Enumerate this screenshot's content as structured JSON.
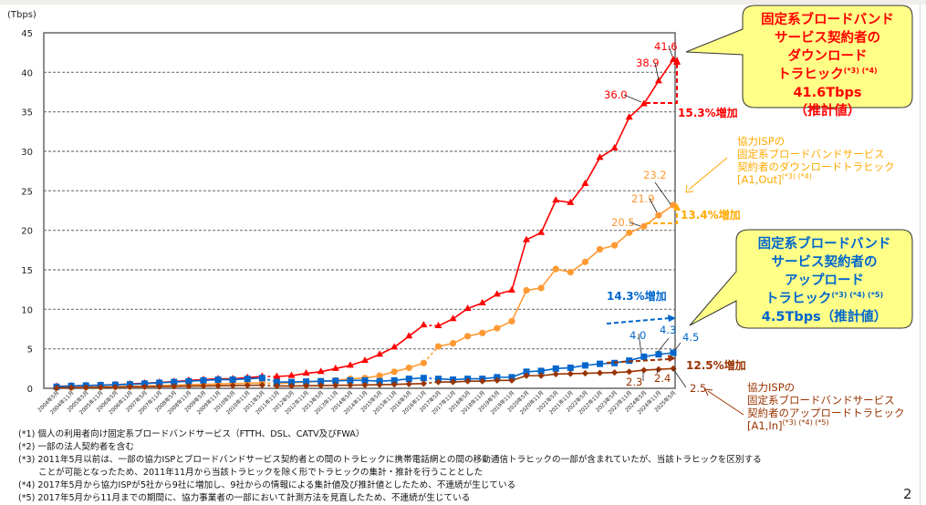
{
  "chart_data": {
    "type": "line",
    "unit_label": "(Tbps)",
    "ylim": [
      0,
      45
    ],
    "yticks": [
      0,
      5,
      10,
      15,
      20,
      25,
      30,
      35,
      40,
      45
    ],
    "grid": "horizontal-dashed",
    "categories": [
      "2004年5月",
      "2004年11月",
      "2005年5月",
      "2005年11月",
      "2006年5月",
      "2006年11月",
      "2007年5月",
      "2007年11月",
      "2008年5月",
      "2008年11月",
      "2009年5月",
      "2009年11月",
      "2010年5月",
      "2010年11月",
      "2011年5月",
      "2011年11月",
      "2012年5月",
      "2012年11月",
      "2013年5月",
      "2013年11月",
      "2014年5月",
      "2014年11月",
      "2015年5月",
      "2015年11月",
      "2016年5月",
      "2016年11月",
      "2017年5月",
      "2017年11月",
      "2018年5月",
      "2018年11月",
      "2019年5月",
      "2019年11月",
      "2020年5月",
      "2020年11月",
      "2021年5月",
      "2021年11月",
      "2022年5月",
      "2022年11月",
      "2023年5月",
      "2023年11月",
      "2024年5月",
      "2024年11月",
      "2025年5月"
    ],
    "series": [
      {
        "key": "download",
        "color": "#ff0000",
        "marker": "triangle",
        "values": [
          0.25,
          0.3,
          0.35,
          0.4,
          0.45,
          0.55,
          0.65,
          0.75,
          0.85,
          1.0,
          1.1,
          1.2,
          1.2,
          1.35,
          1.5,
          1.5,
          1.6,
          1.9,
          2.1,
          2.5,
          2.9,
          3.5,
          4.3,
          5.2,
          6.6,
          8.0,
          7.9,
          8.8,
          10.1,
          10.8,
          11.9,
          12.4,
          18.8,
          19.7,
          23.8,
          23.5,
          25.9,
          29.2,
          30.4,
          34.3,
          36.0,
          38.9,
          41.6
        ]
      },
      {
        "key": "isp_download",
        "color": "#ff9933",
        "marker": "circle",
        "values": [
          0.1,
          0.12,
          0.15,
          0.18,
          0.2,
          0.25,
          0.3,
          0.35,
          0.4,
          0.45,
          0.5,
          0.55,
          0.6,
          0.65,
          0.7,
          0.6,
          0.7,
          0.8,
          0.9,
          1.0,
          1.2,
          1.3,
          1.6,
          2.1,
          2.6,
          3.2,
          5.3,
          5.7,
          6.6,
          7.0,
          7.6,
          8.5,
          12.4,
          12.7,
          15.1,
          14.7,
          16.0,
          17.6,
          18.1,
          19.7,
          20.5,
          21.9,
          23.2
        ]
      },
      {
        "key": "upload",
        "color": "#0066cc",
        "marker": "square",
        "values": [
          0.2,
          0.3,
          0.35,
          0.4,
          0.45,
          0.5,
          0.6,
          0.7,
          0.8,
          0.9,
          1.0,
          1.1,
          1.1,
          1.2,
          1.3,
          0.8,
          0.8,
          0.85,
          0.9,
          0.95,
          1.0,
          1.0,
          0.9,
          1.0,
          1.2,
          1.3,
          1.2,
          1.1,
          1.2,
          1.2,
          1.4,
          1.4,
          2.1,
          2.2,
          2.5,
          2.6,
          2.9,
          3.1,
          3.2,
          3.5,
          4.0,
          4.3,
          4.5
        ]
      },
      {
        "key": "isp_upload",
        "color": "#993300",
        "marker": "diamond",
        "values": [
          0.05,
          0.08,
          0.1,
          0.12,
          0.15,
          0.18,
          0.2,
          0.22,
          0.25,
          0.28,
          0.3,
          0.32,
          0.35,
          0.38,
          0.4,
          0.3,
          0.3,
          0.32,
          0.35,
          0.38,
          0.4,
          0.42,
          0.45,
          0.5,
          0.55,
          0.6,
          0.8,
          0.8,
          0.9,
          0.9,
          1.0,
          1.0,
          1.6,
          1.6,
          1.8,
          1.85,
          1.9,
          1.95,
          2.0,
          2.1,
          2.3,
          2.4,
          2.5
        ]
      }
    ],
    "data_labels": {
      "download": [
        "36.0",
        "38.9",
        "41.6"
      ],
      "isp_download": [
        "20.5",
        "21.9",
        "23.2"
      ],
      "upload": [
        "4.0",
        "4.3",
        "4.5"
      ],
      "isp_upload": [
        "2.3",
        "2.4",
        "2.5"
      ]
    },
    "growth": {
      "download": "15.3%増加",
      "isp_download": "13.4%増加",
      "upload": "14.3%増加",
      "isp_upload": "12.5%増加"
    }
  },
  "callouts": {
    "download": {
      "l1": "固定系ブロードバンド",
      "l2": "サービス契約者の",
      "l3": "ダウンロード",
      "l4": "トラヒック",
      "sup": "(*3) (*4)",
      "value": " 41.6Tbps",
      "l5": "（推計値）"
    },
    "upload": {
      "l1": "固定系ブロードバンド",
      "l2": "サービス契約者の",
      "l3": "アップロード",
      "l4": "トラヒック",
      "sup": "(*3) (*4) (*5)",
      "l5": "4.5Tbps（推計値）"
    }
  },
  "notes": {
    "isp_download": {
      "l1": "協力ISPの",
      "l2": "固定系ブロードバンドサービス",
      "l3": "契約者のダウンロードトラヒック",
      "l4": "[A1,Out]",
      "sup": "(*3) (*4)"
    },
    "isp_upload": {
      "l1": "協力ISPの",
      "l2": "固定系ブロードバンドサービス",
      "l3": "契約者のアップロードトラヒック",
      "l4": "[A1,In]",
      "sup": "(*3) (*4) (*5)"
    }
  },
  "colors": {
    "download": "#ff0000",
    "isp_download": "#ff9933",
    "upload": "#0066cc",
    "isp_upload": "#993300",
    "callout_bg": "#ffff88"
  },
  "footnotes": [
    "(*1) 個人の利用者向け固定系ブロードバンドサービス（FTTH、DSL、CATV及びFWA）",
    "(*2) 一部の法人契約者を含む",
    "(*3) 2011年5月以前は、一部の協力ISPとブロードバンドサービス契約者との間のトラヒックに携帯電話網との間の移動通信トラヒックの一部が含まれていたが、当該トラヒックを区別する",
    "      ことが可能となったため、2011年11月から当該トラヒックを除く形でトラヒックの集計・推計を行うこととした",
    "(*4) 2017年5月から協力ISPが5社から9社に増加し、9社からの情報による集計値及び推計値としたため、不連続が生じている",
    "(*5) 2017年5月から11月までの期間に、協力事業者の一部において計測方法を見直したため、不連続が生じている"
  ],
  "page_number": "2"
}
